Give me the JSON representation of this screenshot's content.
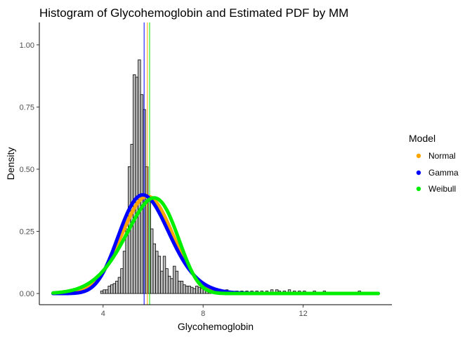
{
  "chart_data": {
    "type": "histogram",
    "title": "Histogram of Glycohemoglobin and Estimated PDF by MM",
    "xlabel": "Glycohemoglobin",
    "ylabel": "Density",
    "xlim": [
      1.45,
      15.55
    ],
    "ylim": [
      -0.045,
      1.09
    ],
    "x_ticks": [
      4,
      8,
      12
    ],
    "x_tick_labels": [
      "4",
      "8",
      "12"
    ],
    "y_ticks": [
      0,
      0.25,
      0.5,
      0.75,
      1.0
    ],
    "y_tick_labels": [
      "0.00",
      "0.25",
      "0.50",
      "0.75",
      "1.00"
    ],
    "grid": false,
    "histogram": {
      "bin_width": 0.1,
      "fill": "#bebebe",
      "stroke": "#000000",
      "bins": [
        {
          "x0": 3.9,
          "density": 0.01
        },
        {
          "x0": 4.0,
          "density": 0.015
        },
        {
          "x0": 4.1,
          "density": 0.015
        },
        {
          "x0": 4.2,
          "density": 0.03
        },
        {
          "x0": 4.3,
          "density": 0.035
        },
        {
          "x0": 4.4,
          "density": 0.04
        },
        {
          "x0": 4.5,
          "density": 0.05
        },
        {
          "x0": 4.6,
          "density": 0.065
        },
        {
          "x0": 4.7,
          "density": 0.1
        },
        {
          "x0": 4.8,
          "density": 0.17
        },
        {
          "x0": 4.9,
          "density": 0.26
        },
        {
          "x0": 5.0,
          "density": 0.51
        },
        {
          "x0": 5.1,
          "density": 0.6
        },
        {
          "x0": 5.2,
          "density": 0.88
        },
        {
          "x0": 5.3,
          "density": 0.87
        },
        {
          "x0": 5.4,
          "density": 0.94
        },
        {
          "x0": 5.5,
          "density": 0.8
        },
        {
          "x0": 5.6,
          "density": 0.74
        },
        {
          "x0": 5.7,
          "density": 0.51
        },
        {
          "x0": 5.8,
          "density": 0.37
        },
        {
          "x0": 5.9,
          "density": 0.26
        },
        {
          "x0": 6.0,
          "density": 0.2
        },
        {
          "x0": 6.1,
          "density": 0.17
        },
        {
          "x0": 6.2,
          "density": 0.15
        },
        {
          "x0": 6.3,
          "density": 0.09
        },
        {
          "x0": 6.4,
          "density": 0.15
        },
        {
          "x0": 6.5,
          "density": 0.1
        },
        {
          "x0": 6.6,
          "density": 0.07
        },
        {
          "x0": 6.7,
          "density": 0.06
        },
        {
          "x0": 6.8,
          "density": 0.11
        },
        {
          "x0": 6.9,
          "density": 0.09
        },
        {
          "x0": 7.0,
          "density": 0.05
        },
        {
          "x0": 7.1,
          "density": 0.05
        },
        {
          "x0": 7.2,
          "density": 0.035
        },
        {
          "x0": 7.3,
          "density": 0.03
        },
        {
          "x0": 7.4,
          "density": 0.03
        },
        {
          "x0": 7.5,
          "density": 0.025
        },
        {
          "x0": 7.6,
          "density": 0.02
        },
        {
          "x0": 7.7,
          "density": 0.03
        },
        {
          "x0": 7.8,
          "density": 0.025
        },
        {
          "x0": 7.9,
          "density": 0.02
        },
        {
          "x0": 8.0,
          "density": 0.02
        },
        {
          "x0": 8.1,
          "density": 0.015
        },
        {
          "x0": 8.2,
          "density": 0.01
        },
        {
          "x0": 8.3,
          "density": 0.015
        },
        {
          "x0": 8.4,
          "density": 0.02
        },
        {
          "x0": 8.5,
          "density": 0.01
        },
        {
          "x0": 8.6,
          "density": 0.01
        },
        {
          "x0": 8.7,
          "density": 0.01
        },
        {
          "x0": 8.8,
          "density": 0.01
        },
        {
          "x0": 8.9,
          "density": 0.015
        },
        {
          "x0": 9.0,
          "density": 0.01
        },
        {
          "x0": 9.1,
          "density": 0.01
        },
        {
          "x0": 9.3,
          "density": 0.01
        },
        {
          "x0": 9.5,
          "density": 0.01
        },
        {
          "x0": 9.7,
          "density": 0.01
        },
        {
          "x0": 9.9,
          "density": 0.01
        },
        {
          "x0": 10.1,
          "density": 0.01
        },
        {
          "x0": 10.3,
          "density": 0.01
        },
        {
          "x0": 10.5,
          "density": 0.01
        },
        {
          "x0": 10.7,
          "density": 0.015
        },
        {
          "x0": 10.9,
          "density": 0.015
        },
        {
          "x0": 11.0,
          "density": 0.01
        },
        {
          "x0": 11.2,
          "density": 0.01
        },
        {
          "x0": 11.4,
          "density": 0.015
        },
        {
          "x0": 11.6,
          "density": 0.01
        },
        {
          "x0": 11.8,
          "density": 0.01
        },
        {
          "x0": 12.0,
          "density": 0.01
        },
        {
          "x0": 12.4,
          "density": 0.01
        },
        {
          "x0": 12.8,
          "density": 0.01
        },
        {
          "x0": 14.2,
          "density": 0.01
        }
      ]
    },
    "vertical_lines": [
      {
        "x": 5.64,
        "color": "#0000ff"
      },
      {
        "x": 5.77,
        "color": "#ffa500"
      },
      {
        "x": 5.86,
        "color": "#00ee00"
      }
    ],
    "series": [
      {
        "name": "Normal",
        "color": "#ffa500",
        "distribution": "normal",
        "mean": 5.77,
        "sd": 1.02
      },
      {
        "name": "Gamma",
        "color": "#0000ff",
        "distribution": "gamma",
        "shape": 32.0,
        "rate": 5.55
      },
      {
        "name": "Weibull",
        "color": "#00ee00",
        "distribution": "weibull",
        "shape": 6.4,
        "scale": 6.2
      }
    ],
    "curve_x_range": [
      2.0,
      15.0
    ],
    "legend": {
      "title": "Model",
      "position": "right",
      "entries": [
        "Normal",
        "Gamma",
        "Weibull"
      ]
    }
  }
}
